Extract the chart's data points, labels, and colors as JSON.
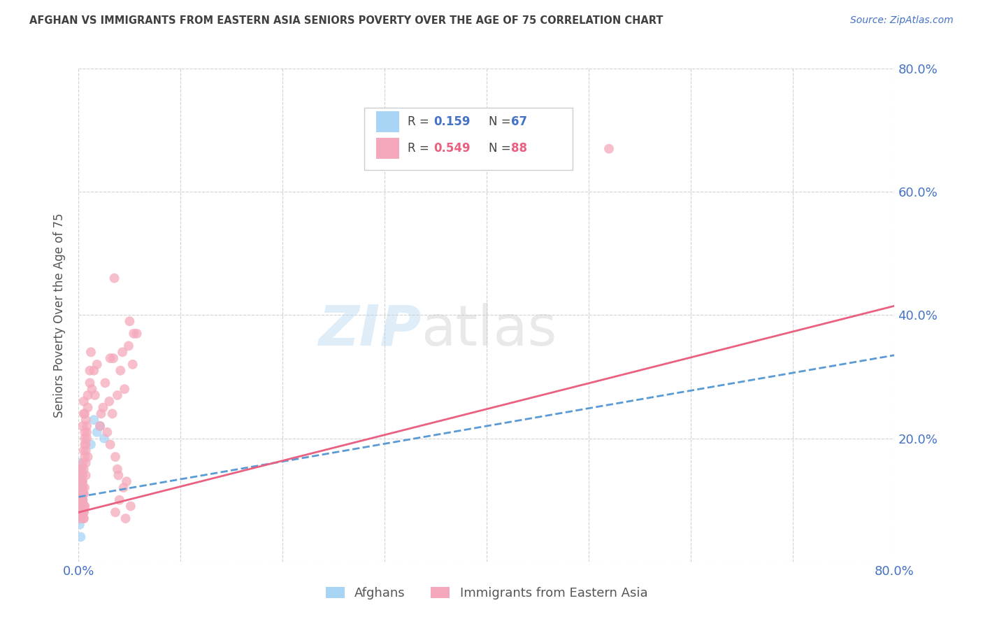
{
  "title": "AFGHAN VS IMMIGRANTS FROM EASTERN ASIA SENIORS POVERTY OVER THE AGE OF 75 CORRELATION CHART",
  "source": "Source: ZipAtlas.com",
  "ylabel": "Seniors Poverty Over the Age of 75",
  "blue_R": 0.159,
  "blue_N": 67,
  "pink_R": 0.549,
  "pink_N": 88,
  "blue_color": "#A8D4F5",
  "pink_color": "#F5A8BB",
  "blue_line_color": "#5B9BD5",
  "pink_line_color": "#E96080",
  "legend_label_blue": "Afghans",
  "legend_label_pink": "Immigrants from Eastern Asia",
  "watermark": "ZIPatlas",
  "background_color": "#FFFFFF",
  "grid_color": "#CCCCCC",
  "axis_label_color": "#4472C4",
  "title_color": "#404040",
  "xlim": [
    0.0,
    0.8
  ],
  "ylim": [
    0.0,
    0.8
  ],
  "blue_line_x0": 0.0,
  "blue_line_y0": 0.105,
  "blue_line_x1": 0.8,
  "blue_line_y1": 0.335,
  "pink_line_x0": 0.0,
  "pink_line_y0": 0.08,
  "pink_line_x1": 0.8,
  "pink_line_y1": 0.415,
  "blue_scatter_x": [
    0.001,
    0.002,
    0.001,
    0.003,
    0.002,
    0.001,
    0.003,
    0.002,
    0.001,
    0.002,
    0.003,
    0.001,
    0.002,
    0.001,
    0.003,
    0.002,
    0.001,
    0.004,
    0.002,
    0.001,
    0.003,
    0.002,
    0.001,
    0.002,
    0.003,
    0.001,
    0.002,
    0.003,
    0.002,
    0.001,
    0.002,
    0.001,
    0.003,
    0.002,
    0.001,
    0.003,
    0.002,
    0.004,
    0.002,
    0.001,
    0.003,
    0.002,
    0.001,
    0.002,
    0.003,
    0.001,
    0.002,
    0.003,
    0.002,
    0.001,
    0.002,
    0.003,
    0.001,
    0.002,
    0.001,
    0.003,
    0.002,
    0.001,
    0.003,
    0.002,
    0.001,
    0.002,
    0.021,
    0.018,
    0.025,
    0.015,
    0.012
  ],
  "blue_scatter_y": [
    0.1,
    0.12,
    0.14,
    0.08,
    0.11,
    0.09,
    0.13,
    0.1,
    0.15,
    0.07,
    0.11,
    0.13,
    0.09,
    0.16,
    0.08,
    0.12,
    0.1,
    0.11,
    0.14,
    0.08,
    0.1,
    0.12,
    0.09,
    0.11,
    0.08,
    0.13,
    0.1,
    0.09,
    0.12,
    0.11,
    0.08,
    0.14,
    0.1,
    0.09,
    0.12,
    0.07,
    0.11,
    0.1,
    0.13,
    0.09,
    0.08,
    0.11,
    0.1,
    0.12,
    0.09,
    0.14,
    0.08,
    0.11,
    0.1,
    0.13,
    0.07,
    0.12,
    0.09,
    0.08,
    0.15,
    0.1,
    0.11,
    0.14,
    0.09,
    0.08,
    0.06,
    0.04,
    0.22,
    0.21,
    0.2,
    0.23,
    0.19
  ],
  "pink_scatter_x": [
    0.001,
    0.002,
    0.002,
    0.003,
    0.003,
    0.004,
    0.003,
    0.004,
    0.005,
    0.004,
    0.003,
    0.004,
    0.002,
    0.005,
    0.006,
    0.003,
    0.004,
    0.005,
    0.004,
    0.003,
    0.006,
    0.004,
    0.005,
    0.003,
    0.005,
    0.004,
    0.003,
    0.006,
    0.004,
    0.005,
    0.007,
    0.005,
    0.006,
    0.004,
    0.006,
    0.007,
    0.005,
    0.006,
    0.007,
    0.006,
    0.005,
    0.008,
    0.007,
    0.009,
    0.007,
    0.008,
    0.006,
    0.009,
    0.005,
    0.008,
    0.011,
    0.009,
    0.011,
    0.013,
    0.012,
    0.015,
    0.016,
    0.018,
    0.022,
    0.026,
    0.03,
    0.034,
    0.038,
    0.041,
    0.045,
    0.049,
    0.053,
    0.057,
    0.024,
    0.021,
    0.031,
    0.036,
    0.04,
    0.044,
    0.047,
    0.051,
    0.028,
    0.033,
    0.036,
    0.039,
    0.035,
    0.043,
    0.046,
    0.05,
    0.054,
    0.52,
    0.031,
    0.038
  ],
  "pink_scatter_y": [
    0.07,
    0.09,
    0.11,
    0.08,
    0.1,
    0.12,
    0.13,
    0.09,
    0.11,
    0.14,
    0.08,
    0.1,
    0.15,
    0.07,
    0.12,
    0.09,
    0.13,
    0.08,
    0.11,
    0.14,
    0.09,
    0.12,
    0.07,
    0.15,
    0.08,
    0.1,
    0.13,
    0.09,
    0.16,
    0.11,
    0.14,
    0.18,
    0.17,
    0.22,
    0.19,
    0.16,
    0.24,
    0.2,
    0.23,
    0.21,
    0.15,
    0.22,
    0.19,
    0.25,
    0.18,
    0.21,
    0.24,
    0.17,
    0.26,
    0.2,
    0.29,
    0.27,
    0.31,
    0.28,
    0.34,
    0.31,
    0.27,
    0.32,
    0.24,
    0.29,
    0.26,
    0.33,
    0.27,
    0.31,
    0.28,
    0.35,
    0.32,
    0.37,
    0.25,
    0.22,
    0.33,
    0.08,
    0.1,
    0.12,
    0.13,
    0.09,
    0.21,
    0.24,
    0.17,
    0.14,
    0.46,
    0.34,
    0.07,
    0.39,
    0.37,
    0.67,
    0.19,
    0.15
  ]
}
